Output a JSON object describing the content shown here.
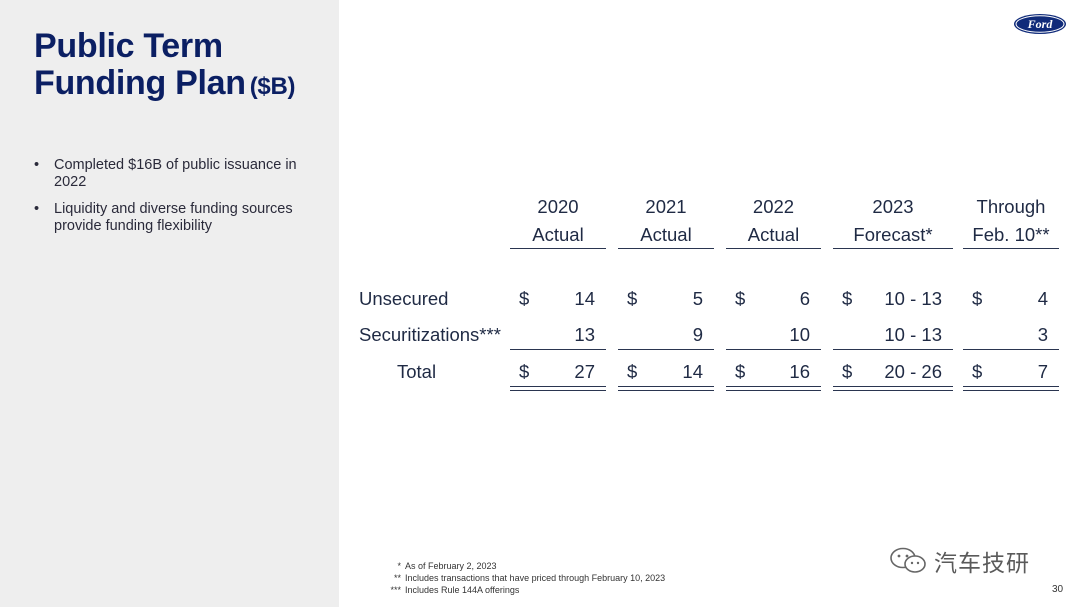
{
  "title": {
    "line1": "Public Term",
    "line2": "Funding Plan",
    "unit": "($B)"
  },
  "bullets": [
    "Completed $16B of public issuance in 2022",
    "Liquidity and diverse funding sources provide funding flexibility"
  ],
  "table": {
    "columns": [
      {
        "line1": "2020",
        "line2": "Actual"
      },
      {
        "line1": "2021",
        "line2": "Actual"
      },
      {
        "line1": "2022",
        "line2": "Actual"
      },
      {
        "line1": "2023",
        "line2": "Forecast*"
      },
      {
        "line1": "Through",
        "line2": "Feb. 10**"
      }
    ],
    "rows": [
      {
        "label": "Unsecured",
        "values": [
          "14",
          "5",
          "6",
          "10 - 13",
          "4"
        ],
        "dollar": true
      },
      {
        "label": "Securitizations***",
        "values": [
          "13",
          "9",
          "10",
          "10 - 13",
          "3"
        ],
        "dollar": false
      },
      {
        "label": "Total",
        "values": [
          "27",
          "14",
          "16",
          "20 - 26",
          "7"
        ],
        "dollar": true
      }
    ],
    "currency_symbol": "$"
  },
  "footnotes": [
    {
      "mark": "*",
      "text": "As of February 2, 2023"
    },
    {
      "mark": "**",
      "text": "Includes transactions that have priced through February 10, 2023"
    },
    {
      "mark": "***",
      "text": "Includes Rule 144A offerings"
    }
  ],
  "logo": {
    "text": "Ford",
    "color": "#102b7a"
  },
  "watermark": {
    "text": "汽车技研",
    "icon": "wechat-icon"
  },
  "page_number": "30",
  "colors": {
    "title": "#0b1f63",
    "panel": "#eeeeee"
  }
}
